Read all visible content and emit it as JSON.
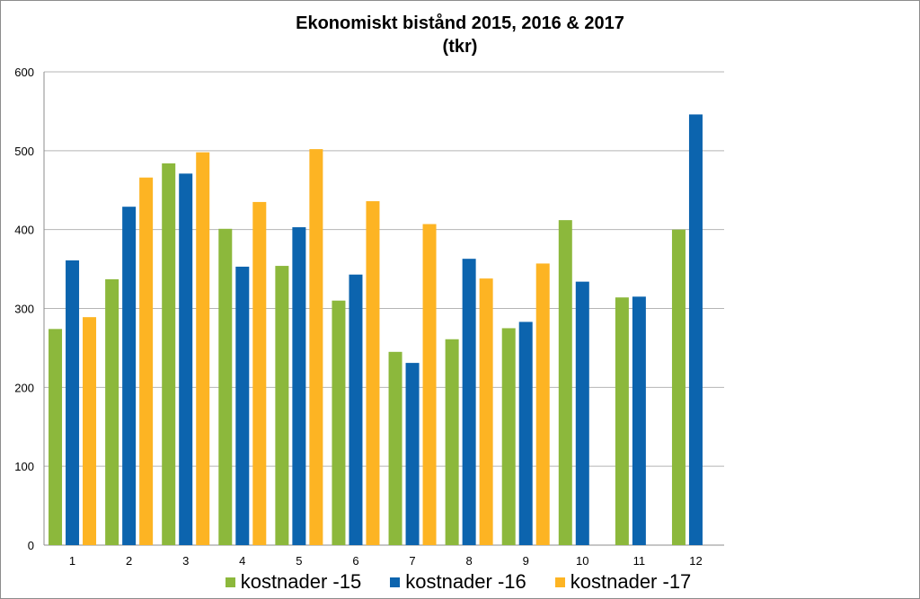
{
  "chart_data": {
    "type": "bar",
    "title": "Ekonomiskt bistånd 2015, 2016 & 2017\n(tkr)",
    "categories": [
      "1",
      "2",
      "3",
      "4",
      "5",
      "6",
      "7",
      "8",
      "9",
      "10",
      "11",
      "12"
    ],
    "series": [
      {
        "name": "kostnader -15",
        "color": "#8cb83c",
        "values": [
          274,
          337,
          484,
          401,
          354,
          310,
          245,
          261,
          275,
          412,
          314,
          400
        ]
      },
      {
        "name": "kostnader -16",
        "color": "#0c64ae",
        "values": [
          361,
          429,
          471,
          353,
          403,
          343,
          231,
          363,
          283,
          334,
          315,
          546
        ]
      },
      {
        "name": "kostnader -17",
        "color": "#fdb423",
        "values": [
          289,
          466,
          498,
          435,
          502,
          436,
          407,
          338,
          357,
          null,
          null,
          null
        ]
      }
    ],
    "y_ticks": [
      "0",
      "100",
      "200",
      "300",
      "400",
      "500",
      "600"
    ],
    "ylim": [
      0,
      600
    ],
    "grid": true,
    "legend": "bottom"
  }
}
